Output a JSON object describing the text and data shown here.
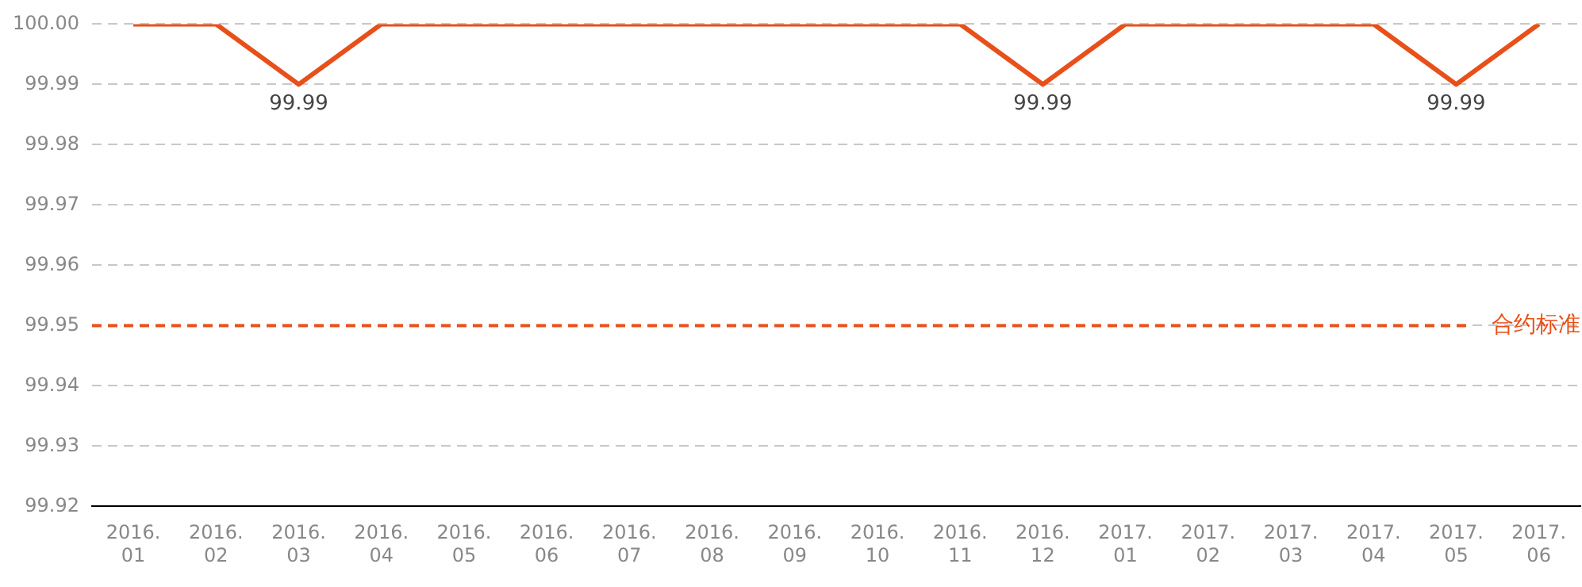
{
  "chart_data": {
    "type": "line",
    "categories": [
      "2016.01",
      "2016.02",
      "2016.03",
      "2016.04",
      "2016.05",
      "2016.06",
      "2016.07",
      "2016.08",
      "2016.09",
      "2016.10",
      "2016.11",
      "2016.12",
      "2017.01",
      "2017.02",
      "2017.03",
      "2017.04",
      "2017.05",
      "2017.06"
    ],
    "series": [
      {
        "color": "#e8501a",
        "values": [
          100,
          100,
          99.99,
          100,
          100,
          100,
          100,
          100,
          100,
          100,
          100,
          99.99,
          100,
          100,
          100,
          100,
          99.99,
          100
        ],
        "value_labels": [
          null,
          null,
          "99.99",
          null,
          null,
          null,
          null,
          null,
          null,
          null,
          null,
          "99.99",
          null,
          null,
          null,
          null,
          "99.99",
          null
        ]
      }
    ],
    "ylim": [
      99.92,
      100
    ],
    "yticks": [
      99.92,
      99.93,
      99.94,
      99.95,
      99.96,
      99.97,
      99.98,
      99.99,
      {
        "value": 100,
        "label": "100.00"
      }
    ],
    "grid": "y",
    "marker": "none",
    "line_style": "solid",
    "legend": false,
    "ref_lines": [
      {
        "axis": "y",
        "value": 99.95,
        "label": "合约标准",
        "color": "#e8501a",
        "line_style": "dashed"
      }
    ]
  }
}
